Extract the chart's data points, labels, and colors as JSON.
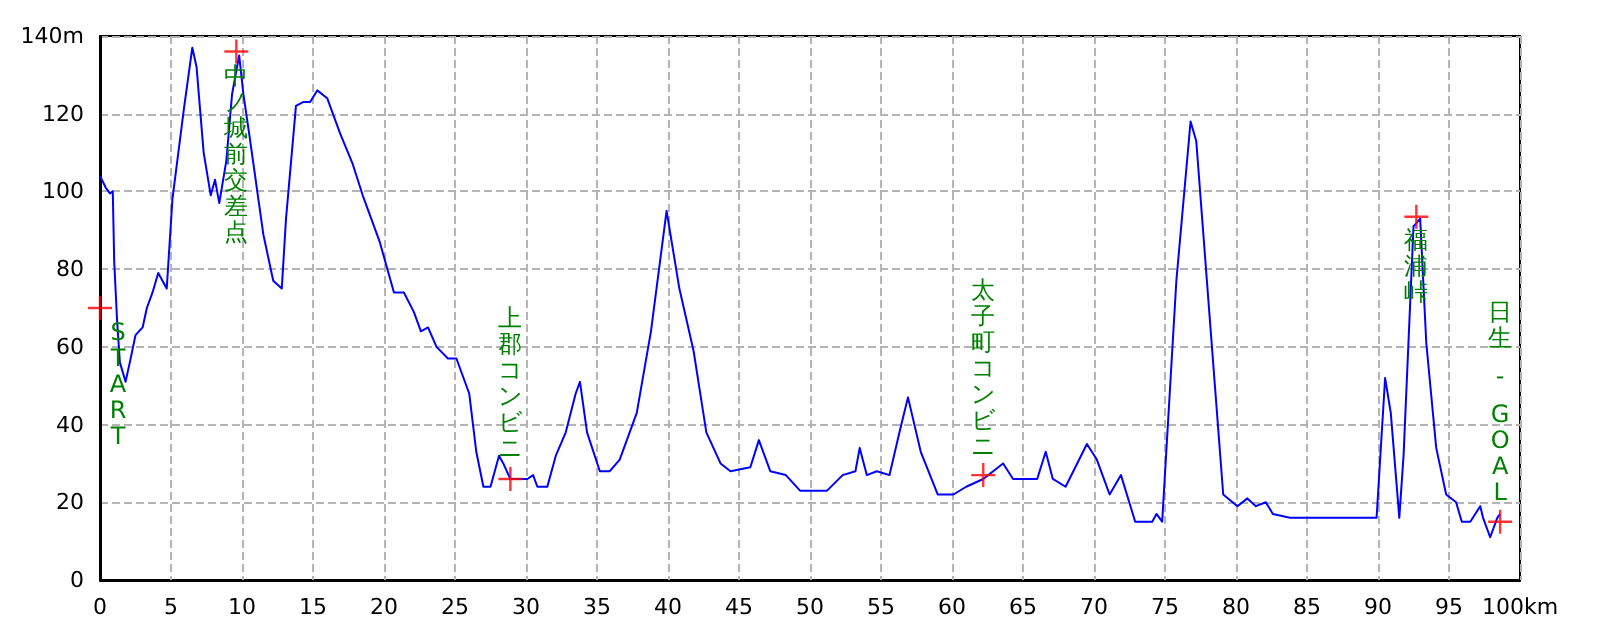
{
  "chart_data": {
    "type": "line",
    "xlim": [
      0,
      100
    ],
    "ylim": [
      0,
      140
    ],
    "xticks": [
      0,
      5,
      10,
      15,
      20,
      25,
      30,
      35,
      40,
      45,
      50,
      55,
      60,
      65,
      70,
      75,
      80,
      85,
      90,
      95,
      {
        "value": 100,
        "label": "100km"
      }
    ],
    "yticks": [
      0,
      20,
      40,
      60,
      80,
      100,
      120,
      {
        "value": 140,
        "label": "140m"
      }
    ],
    "grid": true,
    "series": [
      {
        "color": "#0000ff",
        "marker": "none",
        "x": [
          0,
          0.4,
          0.7,
          0.9,
          1.0,
          1.2,
          1.4,
          1.8,
          2.1,
          2.5,
          3.0,
          3.3,
          3.7,
          4.1,
          4.7,
          5.1,
          5.9,
          6.5,
          6.8,
          7.3,
          7.8,
          8.1,
          8.4,
          8.9,
          9.3,
          9.8,
          10.1,
          10.5,
          11.5,
          12.2,
          12.8,
          13.1,
          13.8,
          14.3,
          14.8,
          15.3,
          16.0,
          16.9,
          17.8,
          18.5,
          19.7,
          20.7,
          21.4,
          22.1,
          22.6,
          23.1,
          23.7,
          24.5,
          25.1,
          26.0,
          26.5,
          27.0,
          27.5,
          28.1,
          28.4,
          28.9,
          30.1,
          30.5,
          30.8,
          31.5,
          32.1,
          32.8,
          33.5,
          33.8,
          34.3,
          35.2,
          35.9,
          36.6,
          37.8,
          38.8,
          39.9,
          40.8,
          41.8,
          42.7,
          43.7,
          44.4,
          45.8,
          46.4,
          47.2,
          48.3,
          49.3,
          51.2,
          52.3,
          53.2,
          53.5,
          54.0,
          54.7,
          55.6,
          56.3,
          56.9,
          57.8,
          59.0,
          60.1,
          61.0,
          62.2,
          63.6,
          64.3,
          66.0,
          66.6,
          67.1,
          68.0,
          69.5,
          70.2,
          71.1,
          71.9,
          72.9,
          74.1,
          74.4,
          74.8,
          75.8,
          76.8,
          77.2,
          78.2,
          79.1,
          80.1,
          80.8,
          81.4,
          82.1,
          82.6,
          83.8,
          88.7,
          89.9,
          90.5,
          90.9,
          91.5,
          91.8,
          92.5,
          92.97,
          93.4,
          94.1,
          94.8,
          95.5,
          95.9,
          96.5,
          97.2,
          97.4,
          97.9,
          98.4,
          98.6
        ],
        "values": [
          104,
          101,
          99.5,
          100,
          82,
          67,
          56,
          51,
          56,
          63,
          65,
          70,
          74,
          79,
          75,
          98,
          121,
          137,
          132,
          110,
          99,
          103,
          97,
          108,
          125,
          135,
          125,
          115,
          89,
          77,
          75,
          93,
          122,
          123,
          123,
          126,
          124,
          115,
          107,
          99,
          87,
          74,
          74,
          69,
          64,
          65,
          60,
          57,
          57,
          48,
          33,
          24,
          24,
          32,
          30,
          26,
          26,
          27,
          24,
          24,
          32,
          38,
          48,
          51,
          38,
          28,
          28,
          31,
          43,
          64,
          95,
          75,
          59,
          38,
          30,
          28,
          29,
          36,
          28,
          27,
          23,
          23,
          27,
          28,
          34,
          27,
          28,
          27,
          38,
          47,
          33,
          22,
          22,
          24,
          26,
          30,
          26,
          26,
          33,
          26,
          24,
          35,
          31,
          22,
          27,
          15,
          15,
          17,
          15,
          77,
          118,
          113,
          65,
          22,
          19,
          21,
          19,
          20,
          17,
          16,
          16,
          16,
          52,
          43,
          16,
          32,
          91,
          93,
          61,
          34,
          22,
          20,
          15,
          15,
          19,
          16,
          11,
          16,
          17
        ]
      },
      {
        "type": "scatter",
        "color": "#ff0000",
        "marker": "cross",
        "x": [
          0,
          9.6,
          28.9,
          62.2,
          92.7,
          98.6
        ],
        "values": [
          70,
          136,
          26,
          27,
          93.5,
          15
        ]
      }
    ],
    "annotations": [
      {
        "text": "START",
        "x": 0,
        "y": 70
      },
      {
        "text": "中ノ城前交差点",
        "x": 9.6,
        "y": 136
      },
      {
        "text": "上郡コンビニ",
        "x": 28.9,
        "y": 26
      },
      {
        "text": "太子町コンビニ",
        "x": 62.2,
        "y": 27
      },
      {
        "text": "福浦峠",
        "x": 92.7,
        "y": 93.5
      },
      {
        "text": "日生 - GOAL",
        "x": 98.6,
        "y": 15
      }
    ]
  }
}
